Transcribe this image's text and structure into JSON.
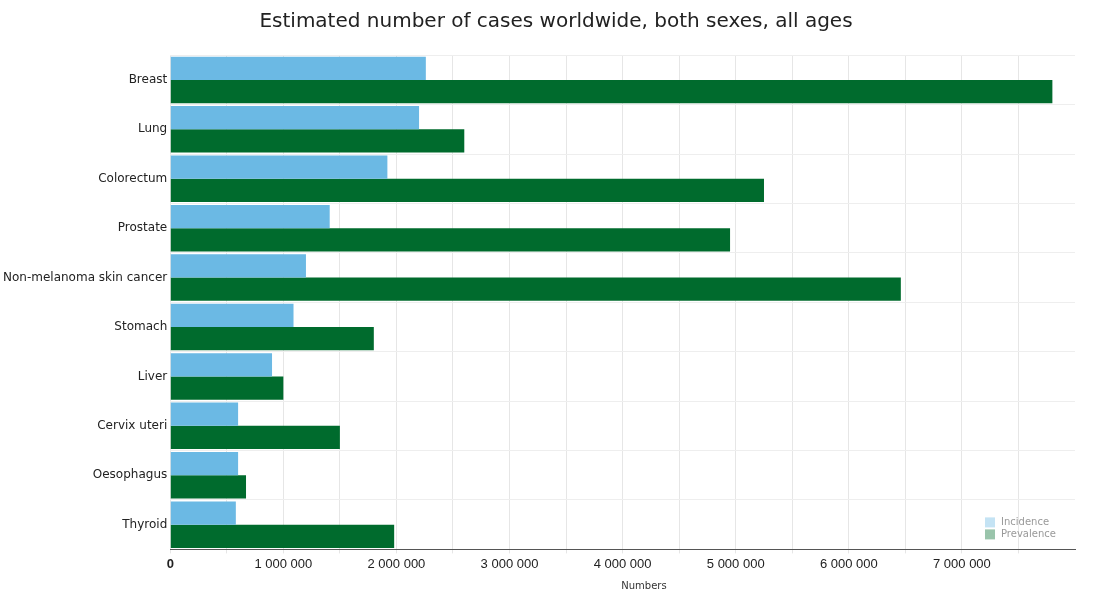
{
  "chart_data": {
    "type": "bar",
    "orientation": "horizontal",
    "title": "Estimated number of cases worldwide, both sexes, all ages",
    "xlabel": "Numbers",
    "categories": [
      "Breast",
      "Lung",
      "Colorectum",
      "Prostate",
      "Non-melanoma skin cancer",
      "Stomach",
      "Liver",
      "Cervix uteri",
      "Oesophagus",
      "Thyroid"
    ],
    "series": [
      {
        "name": "Incidence",
        "color": "#6bb9e4",
        "values": [
          2260000,
          2200000,
          1920000,
          1410000,
          1200000,
          1090000,
          900000,
          600000,
          600000,
          580000
        ]
      },
      {
        "name": "Prevalence",
        "color": "#006b2d",
        "values": [
          7800000,
          2600000,
          5250000,
          4950000,
          6460000,
          1800000,
          1000000,
          1500000,
          670000,
          1980000
        ]
      }
    ],
    "xlim": [
      0,
      8000000
    ],
    "xticks": [
      {
        "value": 0,
        "label": "0"
      },
      {
        "value": 500000,
        "label": null
      },
      {
        "value": 1000000,
        "label": "1 000 000"
      },
      {
        "value": 1500000,
        "label": null
      },
      {
        "value": 2000000,
        "label": "2 000 000"
      },
      {
        "value": 2500000,
        "label": null
      },
      {
        "value": 3000000,
        "label": "3 000 000"
      },
      {
        "value": 3500000,
        "label": null
      },
      {
        "value": 4000000,
        "label": "4 000 000"
      },
      {
        "value": 4500000,
        "label": null
      },
      {
        "value": 5000000,
        "label": "5 000 000"
      },
      {
        "value": 5500000,
        "label": null
      },
      {
        "value": 6000000,
        "label": "6 000 000"
      },
      {
        "value": 6500000,
        "label": null
      },
      {
        "value": 7000000,
        "label": "7 000 000"
      },
      {
        "value": 7500000,
        "label": null
      }
    ],
    "grid": true,
    "legend": "bottom right"
  }
}
